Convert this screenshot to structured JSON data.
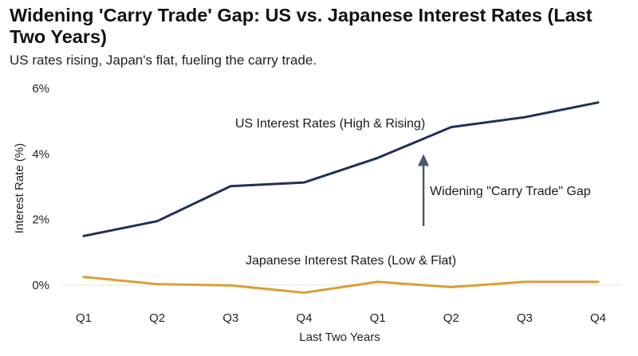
{
  "chart_data": {
    "type": "line",
    "title": "Widening 'Carry Trade' Gap: US vs. Japanese Interest Rates (Last Two Years)",
    "subtitle": "US rates rising, Japan's flat, fueling the carry trade.",
    "xlabel": "Last Two Years",
    "ylabel": "Interest Rate (%)",
    "categories": [
      "Q1",
      "Q2",
      "Q3",
      "Q4",
      "Q1",
      "Q2",
      "Q3",
      "Q4"
    ],
    "ylim": [
      0,
      6
    ],
    "yticks": [
      "0%",
      "2%",
      "4%",
      "6%"
    ],
    "series": [
      {
        "name": "US Interest Rates (High & Rising)",
        "color": "#1f3158",
        "values": [
          1.5,
          1.95,
          3.02,
          3.13,
          3.88,
          4.82,
          5.12,
          5.57
        ]
      },
      {
        "name": "Japanese Interest Rates (Low & Flat)",
        "color": "#d9a032",
        "values": [
          0.25,
          0.03,
          -0.01,
          -0.23,
          0.1,
          -0.06,
          0.1,
          0.1
        ]
      }
    ],
    "annotations": {
      "us_label": "US Interest Rates (High & Rising)",
      "jp_label": "Japanese Interest Rates (Low & Flat)",
      "gap_label": "Widening \"Carry Trade\" Gap",
      "arrow_color": "#4a5a70"
    },
    "grid": false,
    "legend": "none (inline labels)"
  }
}
